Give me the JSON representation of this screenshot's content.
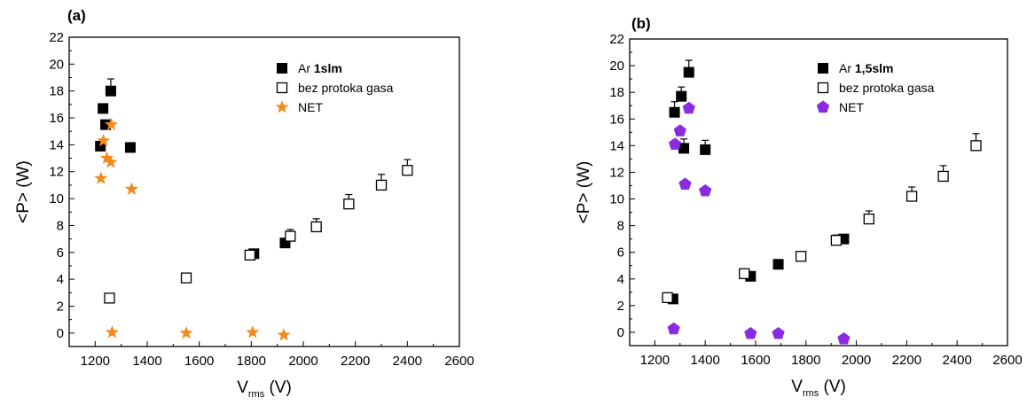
{
  "chart_data": [
    {
      "type": "scatter",
      "panel_label": "(a)",
      "xlabel": "V",
      "xlabel_sub": "rms",
      "xlabel_unit": "(V)",
      "ylabel": "<P> (W)",
      "xlim": [
        1100,
        2600
      ],
      "ylim": [
        -1,
        22
      ],
      "x_ticks": [
        1200,
        1400,
        1600,
        1800,
        2000,
        2200,
        2400,
        2600
      ],
      "y_ticks": [
        0,
        2,
        4,
        6,
        8,
        10,
        12,
        14,
        16,
        18,
        20,
        22
      ],
      "legend_position": "top-center",
      "series": [
        {
          "name_prefix": "Ar ",
          "name_bold": "1slm",
          "marker": "filled-square",
          "color": "#000000",
          "points": [
            {
              "x": 1220,
              "y": 13.9
            },
            {
              "x": 1230,
              "y": 16.7
            },
            {
              "x": 1240,
              "y": 15.5
            },
            {
              "x": 1260,
              "y": 18.0,
              "err": 0.9
            },
            {
              "x": 1335,
              "y": 13.8
            },
            {
              "x": 1810,
              "y": 5.9
            },
            {
              "x": 1930,
              "y": 6.7
            }
          ]
        },
        {
          "name_prefix": "bez protoka gasa",
          "name_bold": "",
          "marker": "open-square",
          "color": "#000000",
          "points": [
            {
              "x": 1255,
              "y": 2.6,
              "err": 0.3
            },
            {
              "x": 1550,
              "y": 4.1,
              "err": 0.3
            },
            {
              "x": 1795,
              "y": 5.8,
              "err": 0.3
            },
            {
              "x": 1950,
              "y": 7.2,
              "err": 0.5
            },
            {
              "x": 2050,
              "y": 7.9,
              "err": 0.6
            },
            {
              "x": 2175,
              "y": 9.6,
              "err": 0.7
            },
            {
              "x": 2300,
              "y": 11.0,
              "err": 0.8
            },
            {
              "x": 2400,
              "y": 12.1,
              "err": 0.8
            }
          ]
        },
        {
          "name_prefix": "NET",
          "name_bold": "",
          "marker": "star",
          "color": "#F28A1E",
          "points": [
            {
              "x": 1222,
              "y": 11.5
            },
            {
              "x": 1232,
              "y": 14.3
            },
            {
              "x": 1245,
              "y": 13.0
            },
            {
              "x": 1260,
              "y": 12.7
            },
            {
              "x": 1262,
              "y": 15.5
            },
            {
              "x": 1340,
              "y": 10.7
            },
            {
              "x": 1265,
              "y": 0.05
            },
            {
              "x": 1550,
              "y": 0.0
            },
            {
              "x": 1805,
              "y": 0.05
            },
            {
              "x": 1925,
              "y": -0.15
            }
          ]
        }
      ]
    },
    {
      "type": "scatter",
      "panel_label": "(b)",
      "xlabel": "V",
      "xlabel_sub": "rms",
      "xlabel_unit": "(V)",
      "ylabel": "<P> (W)",
      "xlim": [
        1100,
        2600
      ],
      "ylim": [
        -1,
        22
      ],
      "x_ticks": [
        1200,
        1400,
        1600,
        1800,
        2000,
        2200,
        2400,
        2600
      ],
      "y_ticks": [
        0,
        2,
        4,
        6,
        8,
        10,
        12,
        14,
        16,
        18,
        20,
        22
      ],
      "legend_position": "top-center",
      "series": [
        {
          "name_prefix": "Ar ",
          "name_bold": "1,5slm",
          "marker": "filled-square",
          "color": "#000000",
          "points": [
            {
              "x": 1272,
              "y": 2.5
            },
            {
              "x": 1278,
              "y": 16.5,
              "err": 0.8
            },
            {
              "x": 1305,
              "y": 17.7,
              "err": 0.7
            },
            {
              "x": 1315,
              "y": 13.8,
              "err": 0.7
            },
            {
              "x": 1335,
              "y": 19.5,
              "err": 0.9
            },
            {
              "x": 1400,
              "y": 13.7,
              "err": 0.7
            },
            {
              "x": 1580,
              "y": 4.2
            },
            {
              "x": 1690,
              "y": 5.1
            },
            {
              "x": 1950,
              "y": 7.0
            }
          ]
        },
        {
          "name_prefix": "bez protoka gasa",
          "name_bold": "",
          "marker": "open-square",
          "color": "#000000",
          "points": [
            {
              "x": 1250,
              "y": 2.6,
              "err": 0.3
            },
            {
              "x": 1555,
              "y": 4.4,
              "err": 0.3
            },
            {
              "x": 1780,
              "y": 5.7,
              "err": 0.3
            },
            {
              "x": 1920,
              "y": 6.9,
              "err": 0.4
            },
            {
              "x": 2050,
              "y": 8.5,
              "err": 0.6
            },
            {
              "x": 2220,
              "y": 10.2,
              "err": 0.7
            },
            {
              "x": 2345,
              "y": 11.7,
              "err": 0.8
            },
            {
              "x": 2475,
              "y": 14.0,
              "err": 0.9
            }
          ]
        },
        {
          "name_prefix": "NET",
          "name_bold": "",
          "marker": "pentagon",
          "color": "#8A2BE2",
          "points": [
            {
              "x": 1280,
              "y": 14.1
            },
            {
              "x": 1300,
              "y": 15.1
            },
            {
              "x": 1320,
              "y": 11.1
            },
            {
              "x": 1335,
              "y": 16.8
            },
            {
              "x": 1400,
              "y": 10.6
            },
            {
              "x": 1275,
              "y": 0.25
            },
            {
              "x": 1580,
              "y": -0.1
            },
            {
              "x": 1690,
              "y": -0.1
            },
            {
              "x": 1950,
              "y": -0.5
            }
          ]
        }
      ]
    }
  ]
}
